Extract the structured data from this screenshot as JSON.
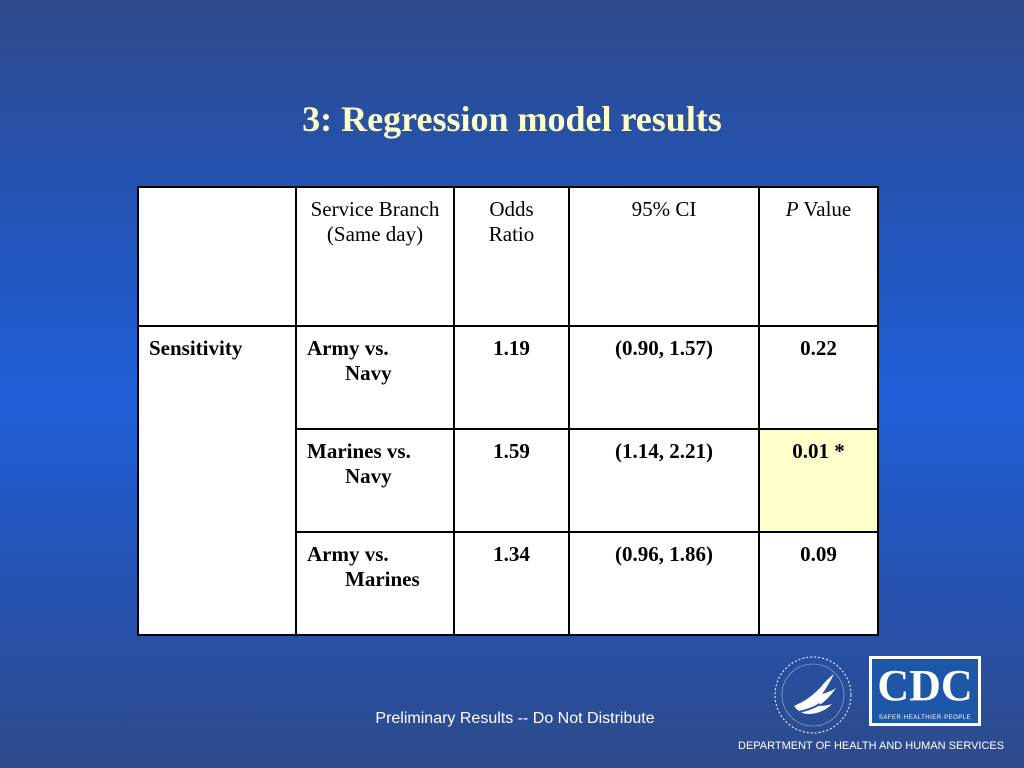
{
  "slide": {
    "title": "3: Regression model results",
    "footer": "Preliminary Results -- Do Not Distribute",
    "department": "DEPARTMENT OF HEALTH AND HUMAN SERVICES"
  },
  "table": {
    "headers": {
      "service_branch": "Service Branch (Same day)",
      "odds_ratio": "Odds Ratio",
      "ci": "95% CI",
      "p_italic": "P",
      "p_rest": " Value"
    },
    "group_label": "Sensitivity",
    "rows": [
      {
        "branch_line1": "Army vs.",
        "branch_line2": "Navy",
        "odds_ratio": "1.19",
        "ci": "(0.90, 1.57)",
        "p_value": "0.22",
        "highlight": false
      },
      {
        "branch_line1": "Marines vs.",
        "branch_line2": "Navy",
        "odds_ratio": "1.59",
        "ci": "(1.14, 2.21)",
        "p_value": "0.01 *",
        "highlight": true
      },
      {
        "branch_line1": "Army vs.",
        "branch_line2": "Marines",
        "odds_ratio": "1.34",
        "ci": "(0.96, 1.86)",
        "p_value": "0.09",
        "highlight": false
      }
    ],
    "highlight_color": "#ffffcc"
  },
  "logos": {
    "cdc_text": "CDC",
    "cdc_tagline": "SAFER·HEALTHIER·PEOPLE",
    "hhs_icon": "hhs-eagle-icon"
  },
  "colors": {
    "title": "#ffffc8",
    "background": "#1f5fd8",
    "cdc_blue": "#1d57a8"
  }
}
